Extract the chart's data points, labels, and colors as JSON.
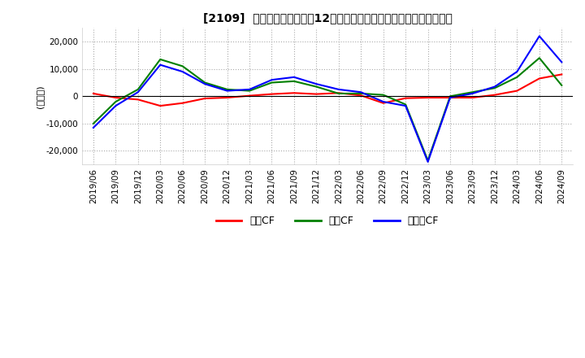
{
  "title": "[2109]  キャッシュフローの12か月移動合計の対前年同期増減額の推移",
  "ylabel": "(百万円)",
  "ylim": [
    -25000,
    25000
  ],
  "yticks": [
    -20000,
    -10000,
    0,
    10000,
    20000
  ],
  "legend_labels": [
    "営業CF",
    "投資CF",
    "フリーCF"
  ],
  "colors": {
    "営業CF": "#ff0000",
    "投資CF": "#008000",
    "フリーCF": "#0000ff"
  },
  "x_labels": [
    "2019/06",
    "2019/09",
    "2019/12",
    "2020/03",
    "2020/06",
    "2020/09",
    "2020/12",
    "2021/03",
    "2021/06",
    "2021/09",
    "2021/12",
    "2022/03",
    "2022/06",
    "2022/09",
    "2022/12",
    "2023/03",
    "2023/06",
    "2023/09",
    "2023/12",
    "2024/03",
    "2024/06",
    "2024/09"
  ],
  "data": {
    "営業CF": [
      1000,
      -500,
      -1200,
      -3500,
      -2500,
      -800,
      -500,
      200,
      800,
      1200,
      800,
      1200,
      300,
      -2500,
      -700,
      -500,
      -500,
      -500,
      500,
      2000,
      6500,
      8000
    ],
    "投資CF": [
      -10000,
      -2000,
      2500,
      13500,
      11000,
      5000,
      2500,
      2000,
      5000,
      5500,
      3500,
      1000,
      1000,
      500,
      -3000,
      -23500,
      0,
      1500,
      3000,
      7000,
      14000,
      4000
    ],
    "フリーCF": [
      -11500,
      -3500,
      1500,
      11500,
      9000,
      4500,
      2000,
      2500,
      6000,
      7000,
      4500,
      2500,
      1500,
      -2000,
      -3500,
      -24000,
      -500,
      1000,
      3500,
      9000,
      22000,
      12500
    ]
  },
  "background_color": "#ffffff",
  "grid_color": "#aaaaaa",
  "plot_bg_color": "#ffffff",
  "line_width": 1.5
}
